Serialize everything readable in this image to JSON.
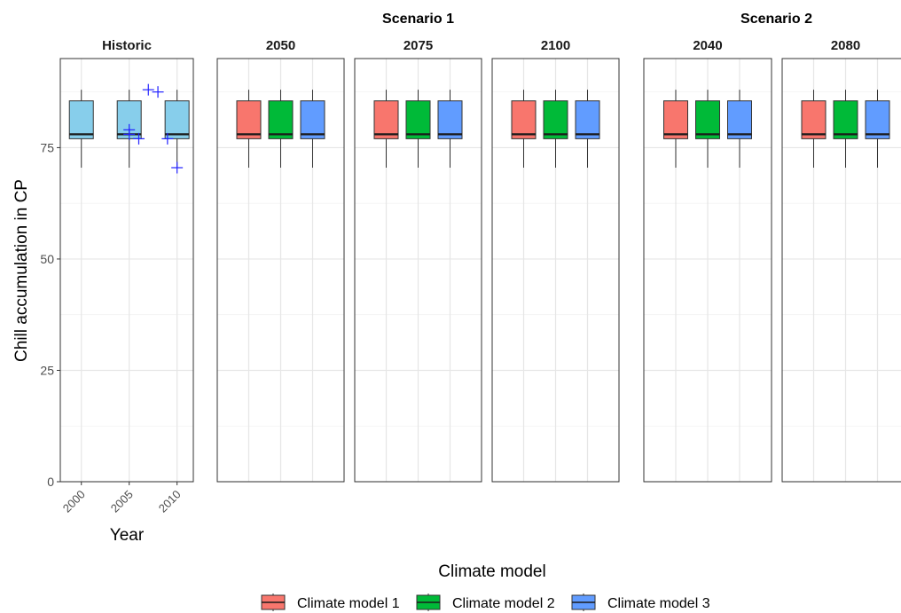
{
  "chart_data": {
    "type": "boxplot",
    "ylabel": "Chill accumulation in CP",
    "xlabel": "Year",
    "ylim": [
      0,
      95
    ],
    "yticks": [
      0,
      25,
      50,
      75
    ],
    "grid": true,
    "legend": {
      "title": "Climate model",
      "position": "bottom",
      "entries": [
        "Climate model 1",
        "Climate model 2",
        "Climate model 3"
      ]
    },
    "series_colors": [
      "#F8766D",
      "#00BA38",
      "#619CFF"
    ],
    "historic_box_color": "#87CEEB",
    "point_color": "#2222FF",
    "groups": [
      {
        "title": "",
        "panels": [
          {
            "title": "Historic",
            "type": "historic",
            "xlim": [
              1997.8,
              2011.7
            ],
            "xticks": [
              2000,
              2005,
              2010
            ],
            "boxes": [
              {
                "x": 2000,
                "min": 70.5,
                "q1": 77,
                "median": 78,
                "q3": 85.5,
                "max": 88
              },
              {
                "x": 2005,
                "min": 70.5,
                "q1": 77,
                "median": 78,
                "q3": 85.5,
                "max": 88
              },
              {
                "x": 2010,
                "min": 70.5,
                "q1": 77,
                "median": 78,
                "q3": 85.5,
                "max": 88
              }
            ],
            "points": [
              {
                "x": 2005,
                "y": 79
              },
              {
                "x": 2005,
                "y": 78
              },
              {
                "x": 2006,
                "y": 77
              },
              {
                "x": 2007,
                "y": 88
              },
              {
                "x": 2008,
                "y": 87.5
              },
              {
                "x": 2009,
                "y": 77
              },
              {
                "x": 2010,
                "y": 70.5
              }
            ]
          }
        ]
      },
      {
        "title": "Scenario 1",
        "panels": [
          {
            "title": "2050",
            "type": "future",
            "boxes": [
              {
                "model": "Climate model 1",
                "min": 70.5,
                "q1": 77,
                "median": 78,
                "q3": 85.5,
                "max": 88
              },
              {
                "model": "Climate model 2",
                "min": 70.5,
                "q1": 77,
                "median": 78,
                "q3": 85.5,
                "max": 88
              },
              {
                "model": "Climate model 3",
                "min": 70.5,
                "q1": 77,
                "median": 78,
                "q3": 85.5,
                "max": 88
              }
            ]
          },
          {
            "title": "2075",
            "type": "future",
            "boxes": [
              {
                "model": "Climate model 1",
                "min": 70.5,
                "q1": 77,
                "median": 78,
                "q3": 85.5,
                "max": 88
              },
              {
                "model": "Climate model 2",
                "min": 70.5,
                "q1": 77,
                "median": 78,
                "q3": 85.5,
                "max": 88
              },
              {
                "model": "Climate model 3",
                "min": 70.5,
                "q1": 77,
                "median": 78,
                "q3": 85.5,
                "max": 88
              }
            ]
          },
          {
            "title": "2100",
            "type": "future",
            "boxes": [
              {
                "model": "Climate model 1",
                "min": 70.5,
                "q1": 77,
                "median": 78,
                "q3": 85.5,
                "max": 88
              },
              {
                "model": "Climate model 2",
                "min": 70.5,
                "q1": 77,
                "median": 78,
                "q3": 85.5,
                "max": 88
              },
              {
                "model": "Climate model 3",
                "min": 70.5,
                "q1": 77,
                "median": 78,
                "q3": 85.5,
                "max": 88
              }
            ]
          }
        ]
      },
      {
        "title": "Scenario 2",
        "panels": [
          {
            "title": "2040",
            "type": "future",
            "boxes": [
              {
                "model": "Climate model 1",
                "min": 70.5,
                "q1": 77,
                "median": 78,
                "q3": 85.5,
                "max": 88
              },
              {
                "model": "Climate model 2",
                "min": 70.5,
                "q1": 77,
                "median": 78,
                "q3": 85.5,
                "max": 88
              },
              {
                "model": "Climate model 3",
                "min": 70.5,
                "q1": 77,
                "median": 78,
                "q3": 85.5,
                "max": 88
              }
            ]
          },
          {
            "title": "2080",
            "type": "future",
            "boxes": [
              {
                "model": "Climate model 1",
                "min": 70.5,
                "q1": 77,
                "median": 78,
                "q3": 85.5,
                "max": 88
              },
              {
                "model": "Climate model 2",
                "min": 70.5,
                "q1": 77,
                "median": 78,
                "q3": 85.5,
                "max": 88
              },
              {
                "model": "Climate model 3",
                "min": 70.5,
                "q1": 77,
                "median": 78,
                "q3": 85.5,
                "max": 88
              }
            ]
          }
        ]
      }
    ]
  }
}
